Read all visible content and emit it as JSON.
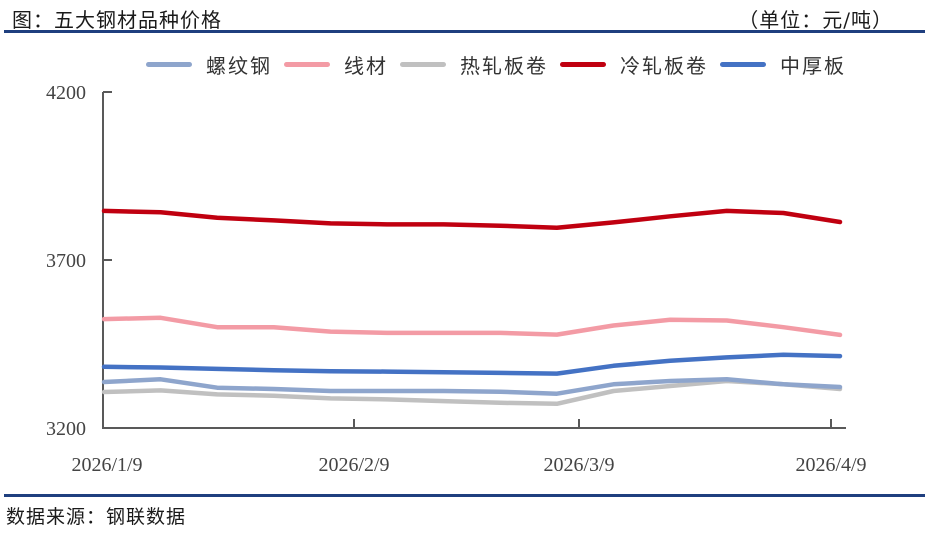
{
  "header": {
    "title": "图：五大钢材品种价格",
    "unit": "（单位：元/吨）"
  },
  "footer": {
    "source": "数据来源：钢联数据"
  },
  "colors": {
    "rule": "#1f3f7f",
    "axis": "#595959"
  },
  "legend": [
    {
      "name": "螺纹钢",
      "color": "#8ea5cc"
    },
    {
      "name": "线材",
      "color": "#f39ba5"
    },
    {
      "name": "热轧板卷",
      "color": "#c0c0c0"
    },
    {
      "name": "冷轧板卷",
      "color": "#c00010"
    },
    {
      "name": "中厚板",
      "color": "#4472c4"
    }
  ],
  "chart_data": {
    "type": "line",
    "title": "五大钢材品种价格",
    "unit": "元/吨",
    "xlabel": "",
    "ylabel": "",
    "ylim": [
      3200,
      4200
    ],
    "yticks": [
      3200,
      3700,
      4200
    ],
    "xticks": [
      "2026/1/9",
      "2026/2/9",
      "2026/3/9",
      "2026/4/9"
    ],
    "grid": false,
    "legend_position": "top",
    "x": [
      "2026/1/9",
      "2026/1/16",
      "2026/1/23",
      "2026/1/30",
      "2026/2/6",
      "2026/2/13",
      "2026/2/20",
      "2026/2/27",
      "2026/3/6",
      "2026/3/13",
      "2026/3/20",
      "2026/3/27",
      "2026/4/3",
      "2026/4/9"
    ],
    "series": [
      {
        "name": "螺纹钢",
        "color": "#8ea5cc",
        "values": [
          3337,
          3345,
          3320,
          3316,
          3310,
          3310,
          3310,
          3308,
          3302,
          3330,
          3340,
          3345,
          3330,
          3322
        ]
      },
      {
        "name": "线材",
        "color": "#f39ba5",
        "values": [
          3524,
          3528,
          3500,
          3500,
          3487,
          3483,
          3483,
          3483,
          3478,
          3505,
          3522,
          3520,
          3500,
          3477
        ]
      },
      {
        "name": "热轧板卷",
        "color": "#c0c0c0",
        "values": [
          3307,
          3312,
          3300,
          3296,
          3288,
          3285,
          3280,
          3275,
          3272,
          3310,
          3325,
          3340,
          3330,
          3316
        ]
      },
      {
        "name": "冷轧板卷",
        "color": "#c00010",
        "values": [
          3846,
          3842,
          3826,
          3818,
          3809,
          3806,
          3806,
          3802,
          3796,
          3812,
          3830,
          3846,
          3840,
          3813
        ]
      },
      {
        "name": "中厚板",
        "color": "#4472c4",
        "values": [
          3382,
          3380,
          3376,
          3372,
          3369,
          3368,
          3366,
          3364,
          3362,
          3385,
          3400,
          3410,
          3418,
          3414
        ]
      }
    ]
  }
}
